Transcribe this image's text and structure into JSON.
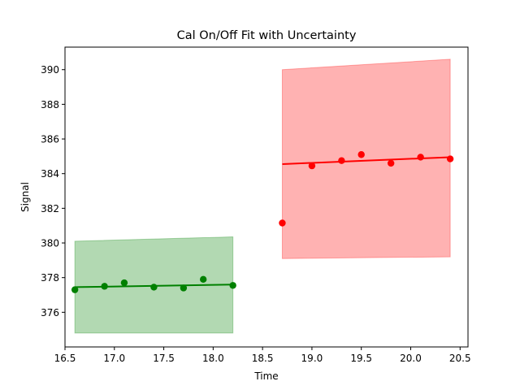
{
  "chart_data": {
    "type": "scatter",
    "title": "Cal On/Off Fit with Uncertainty",
    "xlabel": "Time",
    "ylabel": "Signal",
    "xlim": [
      16.5,
      20.58
    ],
    "ylim": [
      374.0,
      391.3
    ],
    "xticks": [
      16.5,
      17.0,
      17.5,
      18.0,
      18.5,
      19.0,
      19.5,
      20.0,
      20.5
    ],
    "yticks": [
      376,
      378,
      380,
      382,
      384,
      386,
      388,
      390
    ],
    "grid": false,
    "series": [
      {
        "color": "#008000",
        "band_color": "#008000",
        "x": [
          16.6,
          16.9,
          17.1,
          17.4,
          17.7,
          17.9,
          18.2
        ],
        "y": [
          377.3,
          377.5,
          377.7,
          377.45,
          377.4,
          377.9,
          377.55
        ],
        "fit": {
          "x": [
            16.6,
            18.2
          ],
          "y": [
            377.45,
            377.6
          ]
        },
        "band": {
          "x": [
            16.6,
            18.2
          ],
          "lower": [
            374.8,
            374.8
          ],
          "upper": [
            380.1,
            380.35
          ]
        }
      },
      {
        "color": "#ff0000",
        "band_color": "#ff0000",
        "x": [
          18.7,
          19.0,
          19.3,
          19.5,
          19.8,
          20.1,
          20.4
        ],
        "y": [
          381.15,
          384.45,
          384.75,
          385.1,
          384.6,
          384.95,
          384.85
        ],
        "fit": {
          "x": [
            18.7,
            20.4
          ],
          "y": [
            384.55,
            384.95
          ]
        },
        "band": {
          "x": [
            18.7,
            20.4
          ],
          "lower": [
            379.1,
            379.2
          ],
          "upper": [
            390.0,
            390.6
          ]
        }
      }
    ]
  }
}
